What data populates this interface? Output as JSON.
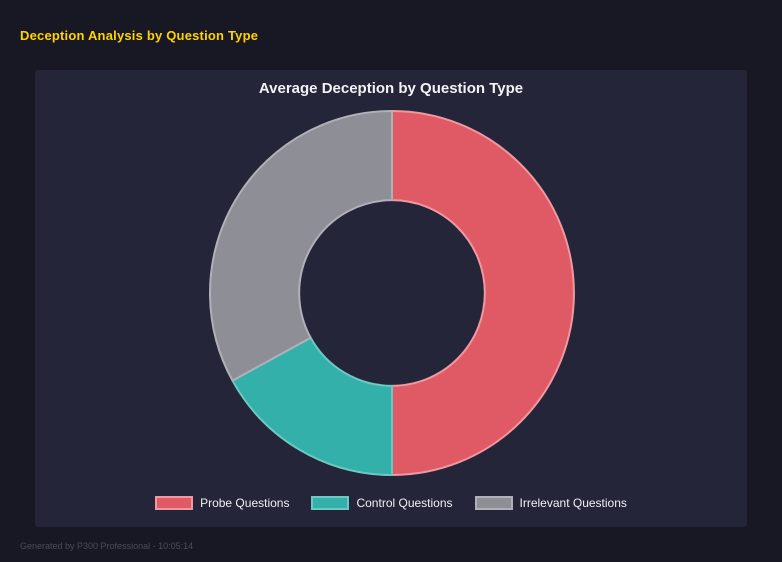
{
  "page": {
    "title": "Deception Analysis by Question Type",
    "footer": "Generated by P300 Professional - 10:05:14"
  },
  "chart_data": {
    "type": "pie",
    "variant": "doughnut",
    "title": "Average Deception by Question Type",
    "labels": [
      "Probe Questions",
      "Control Questions",
      "Irrelevant Questions"
    ],
    "values": [
      50,
      17,
      33
    ],
    "colors": [
      "#df5a64",
      "#33b0a9",
      "#8e8e96"
    ],
    "border_colors": [
      "#ef98a0",
      "#6cc8c1",
      "#b0b0b8"
    ],
    "legend_position": "bottom",
    "start_angle_deg": 0,
    "clockwise": true,
    "cutout_percent": 51,
    "background": "#252539"
  }
}
